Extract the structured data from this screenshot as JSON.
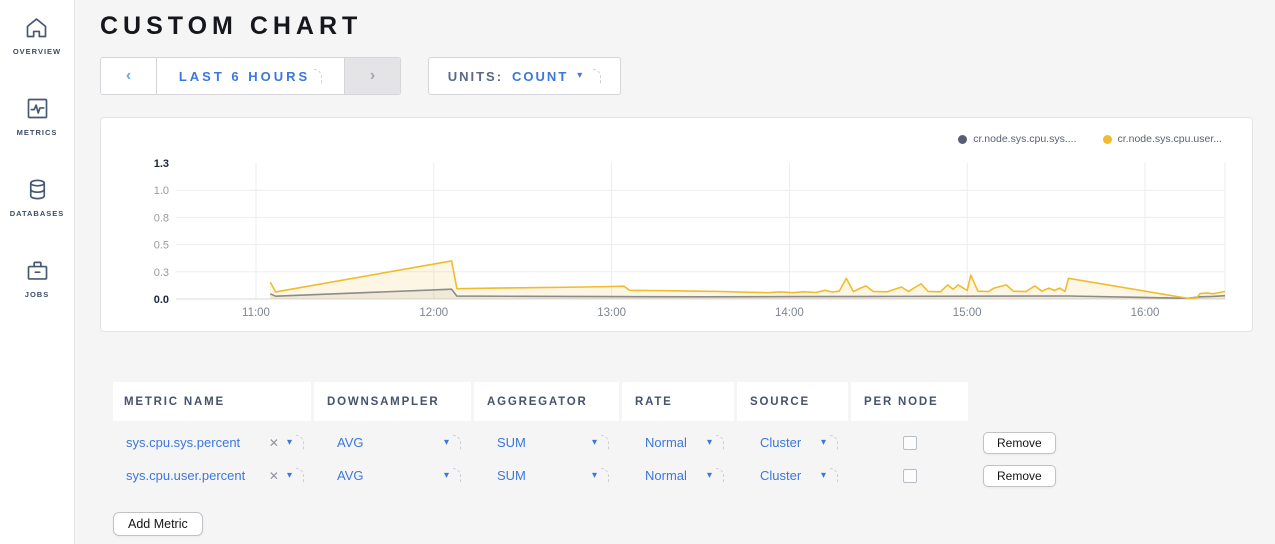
{
  "sidebar": {
    "items": [
      {
        "label": "OVERVIEW",
        "icon": "home"
      },
      {
        "label": "METRICS",
        "icon": "metrics"
      },
      {
        "label": "DATABASES",
        "icon": "databases"
      },
      {
        "label": "JOBS",
        "icon": "briefcase"
      }
    ]
  },
  "header": {
    "title": "CUSTOM CHART"
  },
  "icons": {
    "prev": "‹",
    "next": "›",
    "caret": "▾",
    "clear": "✕"
  },
  "toolbar": {
    "time_range": {
      "label": "LAST 6 HOURS"
    },
    "units": {
      "label": "UNITS:",
      "value": "COUNT"
    }
  },
  "chart_data": {
    "type": "line",
    "title": "",
    "xlabel": "",
    "ylabel": "",
    "grid": true,
    "legend_position": "top-right",
    "x_domain_hours_from_11": [
      -0.45,
      5.45
    ],
    "y_domain": [
      0,
      1.25
    ],
    "y_ticks": [
      {
        "label": "1.3",
        "value": 1.25,
        "bold": true
      },
      {
        "label": "1.0",
        "value": 1.0
      },
      {
        "label": "0.8",
        "value": 0.75
      },
      {
        "label": "0.5",
        "value": 0.5
      },
      {
        "label": "0.3",
        "value": 0.25
      },
      {
        "label": "0.0",
        "value": 0,
        "bold": true
      }
    ],
    "x_ticks": [
      {
        "label": "11:00",
        "t": 0
      },
      {
        "label": "12:00",
        "t": 1
      },
      {
        "label": "13:00",
        "t": 2
      },
      {
        "label": "14:00",
        "t": 3
      },
      {
        "label": "15:00",
        "t": 4
      },
      {
        "label": "16:00",
        "t": 5
      }
    ],
    "legend": [
      {
        "name": "cr.node.sys.cpu.sys....",
        "dot_color": "#565d75"
      },
      {
        "name": "cr.node.sys.cpu.user...",
        "dot_color": "#f0bc2e"
      }
    ],
    "series": [
      {
        "name": "cr.node.sys.cpu.sys....",
        "color": "#8b8b8b",
        "fill": "rgba(120,120,120,0.10)",
        "points": [
          [
            0.08,
            0.048
          ],
          [
            0.11,
            0.026
          ],
          [
            1.1,
            0.09
          ],
          [
            1.13,
            0.027
          ],
          [
            1.5,
            0.025
          ],
          [
            2.0,
            0.022
          ],
          [
            2.5,
            0.02
          ],
          [
            3.0,
            0.022
          ],
          [
            3.5,
            0.024
          ],
          [
            4.0,
            0.026
          ],
          [
            4.57,
            0.028
          ],
          [
            5.24,
            0.006
          ],
          [
            5.31,
            0.02
          ],
          [
            5.38,
            0.024
          ],
          [
            5.45,
            0.03
          ]
        ]
      },
      {
        "name": "cr.node.sys.cpu.user...",
        "color": "#f0bc2e",
        "fill": "rgba(240,188,46,0.13)",
        "points": [
          [
            0.08,
            0.155
          ],
          [
            0.11,
            0.065
          ],
          [
            1.1,
            0.35
          ],
          [
            1.13,
            0.095
          ],
          [
            1.35,
            0.1
          ],
          [
            1.6,
            0.105
          ],
          [
            1.85,
            0.11
          ],
          [
            2.0,
            0.115
          ],
          [
            2.07,
            0.118
          ],
          [
            2.1,
            0.08
          ],
          [
            2.35,
            0.075
          ],
          [
            2.6,
            0.07
          ],
          [
            2.78,
            0.062
          ],
          [
            2.88,
            0.058
          ],
          [
            2.95,
            0.065
          ],
          [
            3.02,
            0.058
          ],
          [
            3.08,
            0.066
          ],
          [
            3.15,
            0.06
          ],
          [
            3.2,
            0.08
          ],
          [
            3.24,
            0.064
          ],
          [
            3.28,
            0.072
          ],
          [
            3.32,
            0.19
          ],
          [
            3.36,
            0.068
          ],
          [
            3.4,
            0.1
          ],
          [
            3.43,
            0.12
          ],
          [
            3.47,
            0.07
          ],
          [
            3.55,
            0.066
          ],
          [
            3.63,
            0.11
          ],
          [
            3.67,
            0.068
          ],
          [
            3.7,
            0.1
          ],
          [
            3.74,
            0.14
          ],
          [
            3.78,
            0.07
          ],
          [
            3.85,
            0.066
          ],
          [
            3.89,
            0.13
          ],
          [
            3.92,
            0.09
          ],
          [
            3.95,
            0.13
          ],
          [
            4.0,
            0.078
          ],
          [
            4.02,
            0.22
          ],
          [
            4.06,
            0.072
          ],
          [
            4.12,
            0.068
          ],
          [
            4.15,
            0.1
          ],
          [
            4.22,
            0.13
          ],
          [
            4.26,
            0.072
          ],
          [
            4.33,
            0.068
          ],
          [
            4.38,
            0.12
          ],
          [
            4.42,
            0.072
          ],
          [
            4.46,
            0.1
          ],
          [
            4.49,
            0.078
          ],
          [
            4.52,
            0.1
          ],
          [
            4.55,
            0.07
          ],
          [
            4.57,
            0.19
          ],
          [
            5.24,
            0.006
          ],
          [
            5.29,
            0.01
          ],
          [
            5.31,
            0.05
          ],
          [
            5.35,
            0.056
          ],
          [
            5.38,
            0.048
          ],
          [
            5.42,
            0.06
          ],
          [
            5.45,
            0.07
          ]
        ]
      }
    ]
  },
  "metrics_table": {
    "headers": [
      "METRIC NAME",
      "DOWNSAMPLER",
      "AGGREGATOR",
      "RATE",
      "SOURCE",
      "PER NODE"
    ],
    "rows": [
      {
        "name": "sys.cpu.sys.percent",
        "downsampler": "AVG",
        "aggregator": "SUM",
        "rate": "Normal",
        "source": "Cluster",
        "per_node": false,
        "remove_label": "Remove"
      },
      {
        "name": "sys.cpu.user.percent",
        "downsampler": "AVG",
        "aggregator": "SUM",
        "rate": "Normal",
        "source": "Cluster",
        "per_node": false,
        "remove_label": "Remove"
      }
    ],
    "add_label": "Add Metric"
  }
}
